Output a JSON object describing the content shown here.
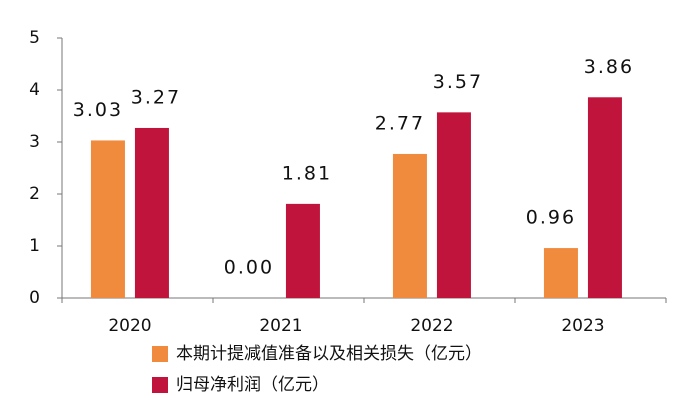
{
  "chart_data": {
    "type": "bar",
    "categories": [
      "2020",
      "2021",
      "2022",
      "2023"
    ],
    "series": [
      {
        "name": "本期计提减值准备以及相关损失（亿元）",
        "color": "#f08a3c",
        "values": [
          3.03,
          0,
          2.77,
          0.96
        ],
        "value_labels": [
          "3.03",
          "0.00",
          "2.77",
          "0.96"
        ]
      },
      {
        "name": "归母净利润（亿元）",
        "color": "#c0143c",
        "values": [
          3.27,
          1.81,
          3.57,
          3.86
        ],
        "value_labels": [
          "3.27",
          "1.81",
          "3.57",
          "3.86"
        ]
      }
    ],
    "ylim": [
      0,
      5
    ],
    "yticks": [
      0,
      1,
      2,
      3,
      4,
      5
    ],
    "grid": false,
    "legend": "bottom"
  }
}
